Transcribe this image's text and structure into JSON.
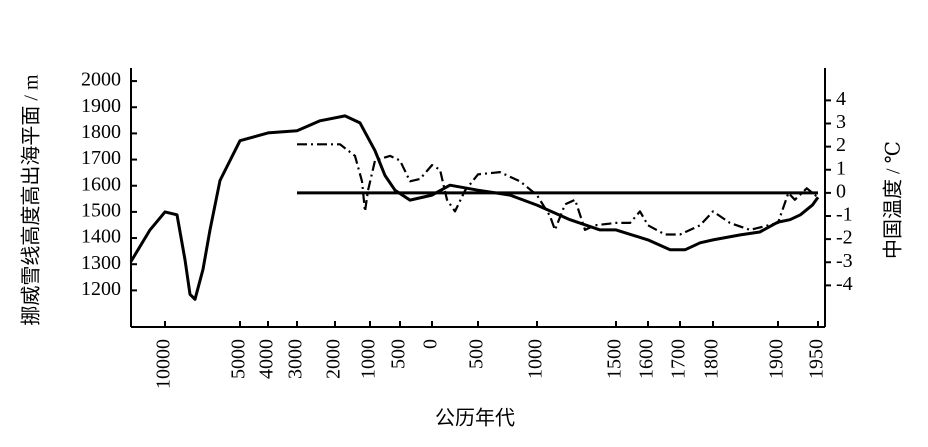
{
  "chart_data": {
    "type": "line",
    "xlabel": "公历年代",
    "ylabel": "挪威雪线高度高出海平面 / m",
    "y2label": "中国温度 / ℃",
    "xticks": [
      {
        "value": -10000,
        "label": "10000"
      },
      {
        "value": -5000,
        "label": "5000"
      },
      {
        "value": -4000,
        "label": "4000"
      },
      {
        "value": -3000,
        "label": "3000"
      },
      {
        "value": -2000,
        "label": "2000"
      },
      {
        "value": -1000,
        "label": "1000"
      },
      {
        "value": -500,
        "label": "500"
      },
      0,
      500,
      1000,
      1500,
      1600,
      1700,
      1800,
      1900,
      1950
    ],
    "ylim": [
      1060,
      2050
    ],
    "yticks": [
      1200,
      1300,
      1400,
      1500,
      1600,
      1700,
      1800,
      1900,
      2000
    ],
    "y2lim": [
      -5.8,
      5.4
    ],
    "y2ticks": [
      -4,
      -3,
      -2,
      -1,
      0,
      1,
      2,
      3,
      4
    ],
    "series": [
      {
        "color": "#000000",
        "style": "solid",
        "x": [
          -12270,
          -11000,
          -10000,
          -9200,
          -8667,
          -8333,
          -8000,
          -7467,
          -7000,
          -6333,
          -5000,
          -4000,
          -3000,
          -2395,
          -1714,
          -1286,
          -917,
          -750,
          -583,
          -344,
          0,
          196,
          500,
          771,
          1000,
          1209,
          1399,
          1500,
          1600,
          1669,
          1715,
          1761,
          1800,
          1842,
          1872,
          1900,
          1915,
          1928,
          1943,
          1950
        ],
        "values": [
          1310,
          1431,
          1500,
          1489,
          1317,
          1185,
          1166,
          1280,
          1431,
          1620,
          1772,
          1802,
          1810,
          1848,
          1867,
          1840,
          1734,
          1639,
          1583,
          1545,
          1564,
          1602,
          1583,
          1564,
          1526,
          1470,
          1431,
          1431,
          1393,
          1355,
          1355,
          1382,
          1393,
          1412,
          1423,
          1461,
          1470,
          1489,
          1526,
          1556
        ]
      },
      {
        "color": "#000000",
        "style": "dashdot",
        "axis": "y2",
        "x": [
          -3000,
          -1857,
          -1429,
          -1229,
          -1143,
          -1057,
          -917,
          -667,
          -500,
          -344,
          -188,
          0,
          87,
          163,
          250,
          359,
          500,
          686,
          856,
          1000,
          1082,
          1114,
          1177,
          1241,
          1304,
          1367,
          1500,
          1544,
          1575,
          1600,
          1653,
          1700,
          1761,
          1800,
          1826,
          1857,
          1900,
          1913,
          1921,
          1936,
          1950
        ],
        "values": [
          2.1,
          2.1,
          1.6,
          0.5,
          -0.8,
          0.1,
          1.4,
          1.6,
          1.4,
          0.5,
          0.6,
          1.2,
          1.0,
          -0.3,
          -0.8,
          0.1,
          0.8,
          0.9,
          0.5,
          -0.1,
          -1.0,
          -1.6,
          -0.5,
          -0.3,
          -1.6,
          -1.4,
          -1.3,
          -1.3,
          -0.8,
          -1.4,
          -1.8,
          -1.8,
          -1.4,
          -0.8,
          -1.3,
          -1.6,
          -1.3,
          0.0,
          -0.3,
          0.2,
          -0.2
        ]
      },
      {
        "color": "#000000",
        "style": "solid",
        "axis": "y2",
        "x": [
          -3000,
          1950
        ],
        "values": [
          0,
          0
        ]
      }
    ]
  }
}
